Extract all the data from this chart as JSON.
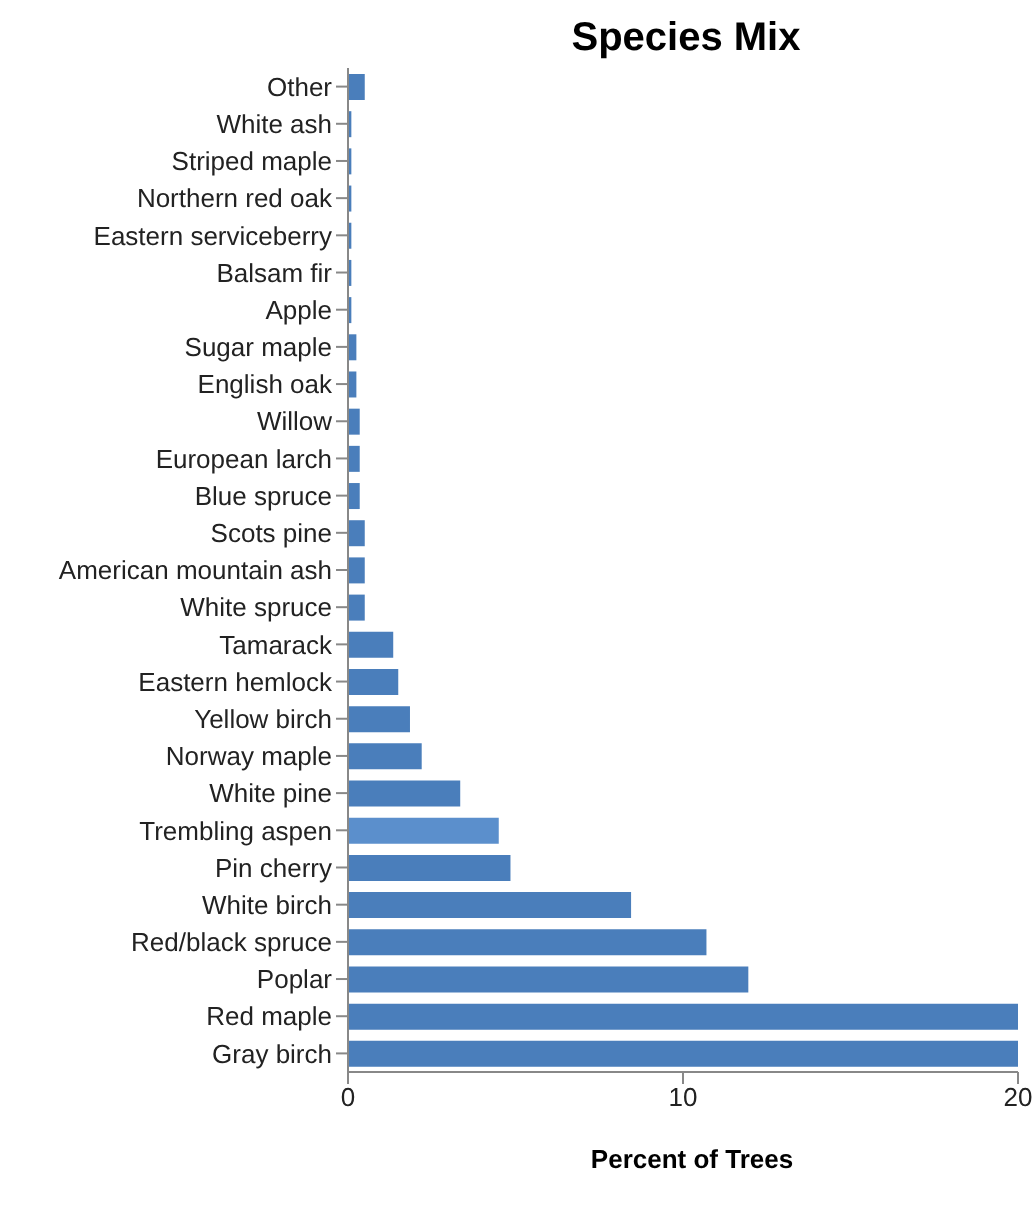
{
  "chart_data": {
    "type": "bar",
    "orientation": "horizontal",
    "title": "Species Mix",
    "xlabel": "Percent of Trees",
    "categories": [
      "Other",
      "White ash",
      "Striped maple",
      "Northern red oak",
      "Eastern serviceberry",
      "Balsam fir",
      "Apple",
      "Sugar maple",
      "English oak",
      "Willow",
      "European larch",
      "Blue spruce",
      "Scots pine",
      "American mountain ash",
      "White spruce",
      "Tamarack",
      "Eastern hemlock",
      "Yellow birch",
      "Norway maple",
      "White pine",
      "Trembling aspen",
      "Pin cherry",
      "White birch",
      "Red/black spruce",
      "Poplar",
      "Red maple",
      "Gray birch"
    ],
    "values": [
      0.5,
      0.1,
      0.1,
      0.1,
      0.1,
      0.1,
      0.1,
      0.25,
      0.25,
      0.35,
      0.35,
      0.35,
      0.5,
      0.5,
      0.5,
      1.35,
      1.5,
      1.85,
      2.2,
      3.35,
      4.5,
      4.85,
      8.45,
      10.7,
      11.95,
      20,
      20
    ],
    "colors": [
      "#4a7ebb",
      "#4a7ebb",
      "#4a7ebb",
      "#4a7ebb",
      "#4a7ebb",
      "#4a7ebb",
      "#4a7ebb",
      "#4a7ebb",
      "#4a7ebb",
      "#4a7ebb",
      "#4a7ebb",
      "#4a7ebb",
      "#4a7ebb",
      "#4a7ebb",
      "#4a7ebb",
      "#4a7ebb",
      "#4a7ebb",
      "#4a7ebb",
      "#4a7ebb",
      "#4a7ebb",
      "#5b8fcc",
      "#4a7ebb",
      "#4a7ebb",
      "#4a7ebb",
      "#4a7ebb",
      "#4a7ebb",
      "#4a7ebb"
    ],
    "xlim": [
      0,
      20
    ],
    "xticks": [
      0,
      10,
      20
    ],
    "grid": false,
    "legend": false
  }
}
